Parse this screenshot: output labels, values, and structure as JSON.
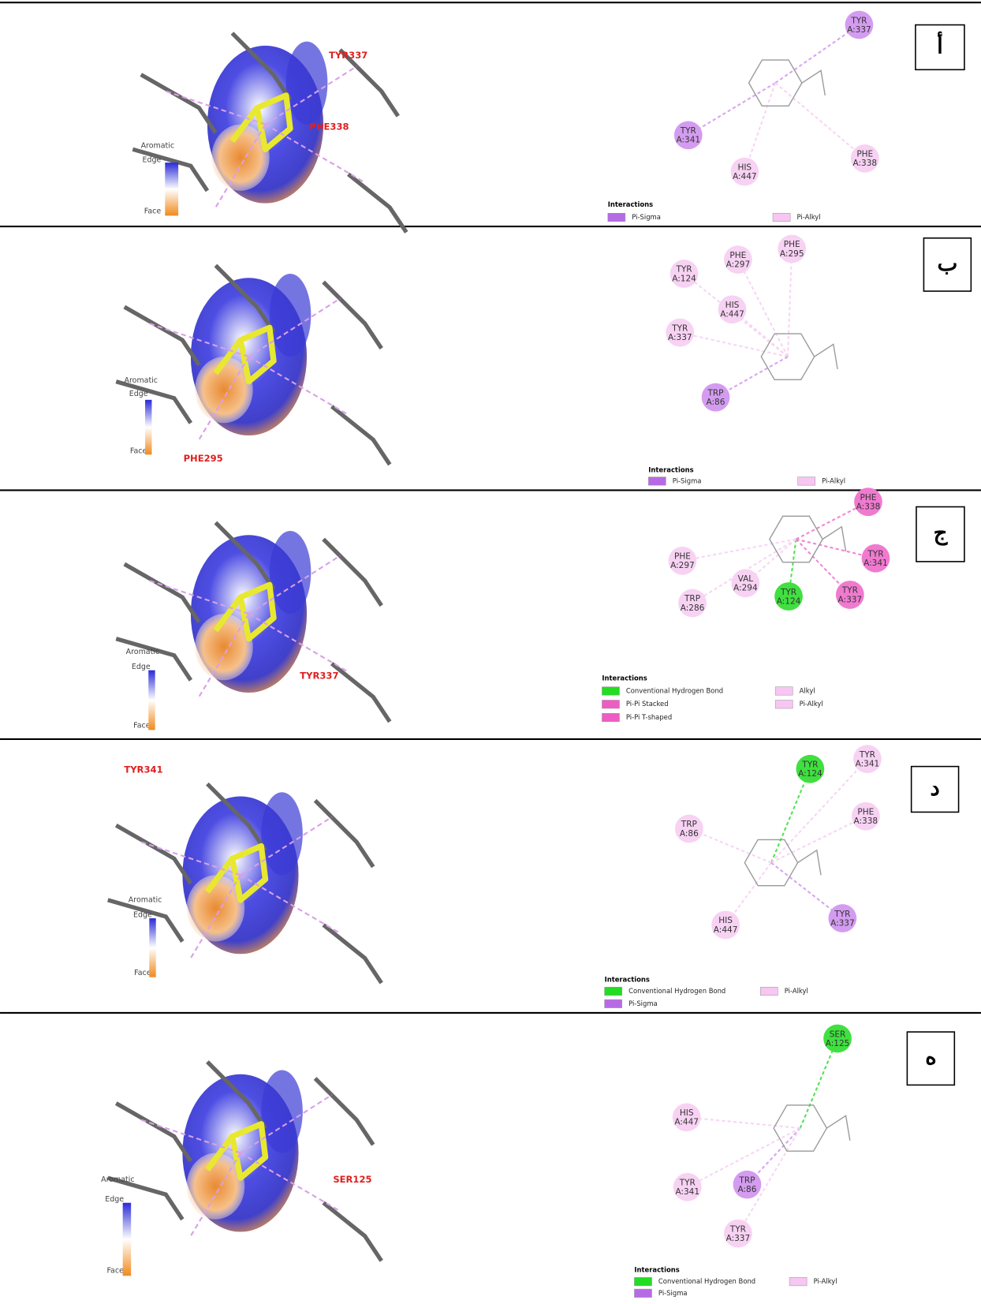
{
  "panels": [
    {
      "letter": "أ",
      "render_labels": [
        "TYR337",
        "PHE338"
      ],
      "color_key": {
        "title": "Aromatic",
        "top": "Edge",
        "bottom": "Face"
      },
      "residues": [
        {
          "name": "TYR",
          "id": "A:337",
          "color": "#d49cf0"
        },
        {
          "name": "TYR",
          "id": "A:341",
          "color": "#d49cf0"
        },
        {
          "name": "HIS",
          "id": "A:447",
          "color": "#f7d2f3"
        },
        {
          "name": "PHE",
          "id": "A:338",
          "color": "#f7d2f3"
        }
      ],
      "interactions": {
        "title": "Interactions",
        "items": [
          {
            "label": "Pi-Sigma",
            "color": "#b76ae6"
          },
          {
            "label": "Pi-Alkyl",
            "color": "#f7c6f2"
          }
        ]
      }
    },
    {
      "letter": "ب",
      "render_labels": [
        "PHE295"
      ],
      "color_key": {
        "title": "Aromatic",
        "top": "Edge",
        "bottom": "Face"
      },
      "residues": [
        {
          "name": "PHE",
          "id": "A:295",
          "color": "#f7d2f3"
        },
        {
          "name": "PHE",
          "id": "A:297",
          "color": "#f7d2f3"
        },
        {
          "name": "TYR",
          "id": "A:124",
          "color": "#f7d2f3"
        },
        {
          "name": "HIS",
          "id": "A:447",
          "color": "#f7d2f3"
        },
        {
          "name": "TYR",
          "id": "A:337",
          "color": "#f7d2f3"
        },
        {
          "name": "TRP",
          "id": "A:86",
          "color": "#d49cf0"
        }
      ],
      "interactions": {
        "title": "Interactions",
        "items": [
          {
            "label": "Pi-Sigma",
            "color": "#b76ae6"
          },
          {
            "label": "Pi-Alkyl",
            "color": "#f7c6f2"
          }
        ]
      }
    },
    {
      "letter": "ج",
      "render_labels": [
        "TYR337"
      ],
      "color_key": {
        "title": "Aromatic",
        "top": "Edge",
        "bottom": "Face"
      },
      "residues": [
        {
          "name": "PHE",
          "id": "A:338",
          "color": "#f07ad0"
        },
        {
          "name": "TYR",
          "id": "A:341",
          "color": "#f07ad0"
        },
        {
          "name": "TYR",
          "id": "A:337",
          "color": "#f07ad0"
        },
        {
          "name": "TYR",
          "id": "A:124",
          "color": "#3fe03f"
        },
        {
          "name": "PHE",
          "id": "A:297",
          "color": "#f7d2f3"
        },
        {
          "name": "VAL",
          "id": "A:294",
          "color": "#f7d2f3"
        },
        {
          "name": "TRP",
          "id": "A:286",
          "color": "#f7d2f3"
        }
      ],
      "interactions": {
        "title": "Interactions",
        "items": [
          {
            "label": "Conventional Hydrogen Bond",
            "color": "#22dd22"
          },
          {
            "label": "Pi-Pi Stacked",
            "color": "#ee5cc4"
          },
          {
            "label": "Pi-Pi T-shaped",
            "color": "#ee5cc4"
          },
          {
            "label": "Alkyl",
            "color": "#f7c6f2"
          },
          {
            "label": "Pi-Alkyl",
            "color": "#f7c6f2"
          }
        ]
      }
    },
    {
      "letter": "د",
      "render_labels": [
        "TYR341"
      ],
      "color_key": {
        "title": "Aromatic",
        "top": "Edge",
        "bottom": "Face"
      },
      "residues": [
        {
          "name": "TYR",
          "id": "A:124",
          "color": "#3fe03f"
        },
        {
          "name": "TYR",
          "id": "A:341",
          "color": "#f7d2f3"
        },
        {
          "name": "PHE",
          "id": "A:338",
          "color": "#f7d2f3"
        },
        {
          "name": "TRP",
          "id": "A:86",
          "color": "#f7d2f3"
        },
        {
          "name": "HIS",
          "id": "A:447",
          "color": "#f7d2f3"
        },
        {
          "name": "TYR",
          "id": "A:337",
          "color": "#d49cf0"
        }
      ],
      "interactions": {
        "title": "Interactions",
        "items": [
          {
            "label": "Conventional Hydrogen Bond",
            "color": "#22dd22"
          },
          {
            "label": "Pi-Sigma",
            "color": "#b76ae6"
          },
          {
            "label": "Pi-Alkyl",
            "color": "#f7c6f2"
          }
        ]
      }
    },
    {
      "letter": "ه",
      "render_labels": [
        "SER125"
      ],
      "color_key": {
        "title": "Aromatic",
        "top": "Edge",
        "bottom": "Face"
      },
      "residues": [
        {
          "name": "SER",
          "id": "A:125",
          "color": "#3fe03f"
        },
        {
          "name": "HIS",
          "id": "A:447",
          "color": "#f7d2f3"
        },
        {
          "name": "TYR",
          "id": "A:341",
          "color": "#f7d2f3"
        },
        {
          "name": "TRP",
          "id": "A:86",
          "color": "#d49cf0"
        },
        {
          "name": "TYR",
          "id": "A:337",
          "color": "#f7d2f3"
        }
      ],
      "interactions": {
        "title": "Interactions",
        "items": [
          {
            "label": "Conventional Hydrogen Bond",
            "color": "#22dd22"
          },
          {
            "label": "Pi-Sigma",
            "color": "#b76ae6"
          },
          {
            "label": "Pi-Alkyl",
            "color": "#f7c6f2"
          }
        ]
      }
    }
  ]
}
